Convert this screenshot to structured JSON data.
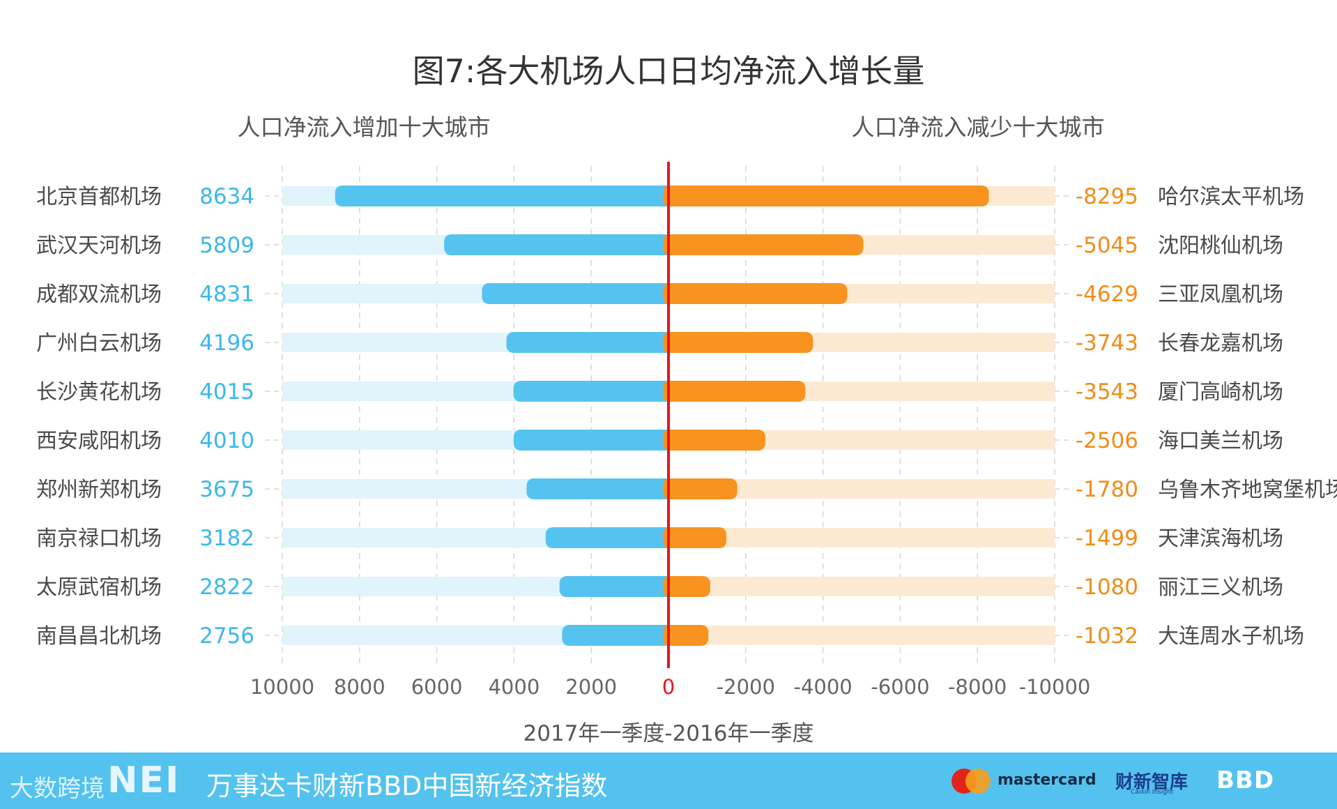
{
  "chart_data": {
    "type": "bar",
    "title": "图7:各大机场人口日均净流入增长量",
    "xlabel": "2017年一季度-2016年一季度",
    "x_ticks": [
      "10000",
      "8000",
      "6000",
      "4000",
      "2000",
      "0",
      "-2000",
      "-4000",
      "-6000",
      "-8000",
      "-10000"
    ],
    "xlim": [
      10000,
      -10000
    ],
    "grid": true,
    "left_panel": {
      "subtitle": "人口净流入增加十大城市",
      "color": "#55c3f0",
      "track_color": "#e1f3fb",
      "value_color": "#3ab8ea",
      "categories": [
        "北京首都机场",
        "武汉天河机场",
        "成都双流机场",
        "广州白云机场",
        "长沙黄花机场",
        "西安咸阳机场",
        "郑州新郑机场",
        "南京禄口机场",
        "太原武宿机场",
        "南昌昌北机场"
      ],
      "values": [
        8634,
        5809,
        4831,
        4196,
        4015,
        4010,
        3675,
        3182,
        2822,
        2756
      ]
    },
    "right_panel": {
      "subtitle": "人口净流入减少十大城市",
      "color": "#f7931e",
      "track_color": "#fde9d2",
      "value_color": "#f08c18",
      "categories": [
        "哈尔滨太平机场",
        "沈阳桃仙机场",
        "三亚凤凰机场",
        "长春龙嘉机场",
        "厦门高崎机场",
        "海口美兰机场",
        "乌鲁木齐地窝堡机场",
        "天津滨海机场",
        "丽江三义机场",
        "大连周水子机场"
      ],
      "values": [
        -8295,
        -5045,
        -4629,
        -3743,
        -3543,
        -2506,
        -1780,
        -1499,
        -1080,
        -1032
      ]
    },
    "zero_line_color": "#e8141c"
  },
  "footer": {
    "title": "万事达卡财新BBD中国新经济指数",
    "nei_logo": "NEI",
    "watermark": "大数跨境",
    "mastercard_label": "mastercard",
    "caixin_label": "财新智库",
    "caixin_sub": "Caixin Insight",
    "bbd_label": "BBD"
  }
}
